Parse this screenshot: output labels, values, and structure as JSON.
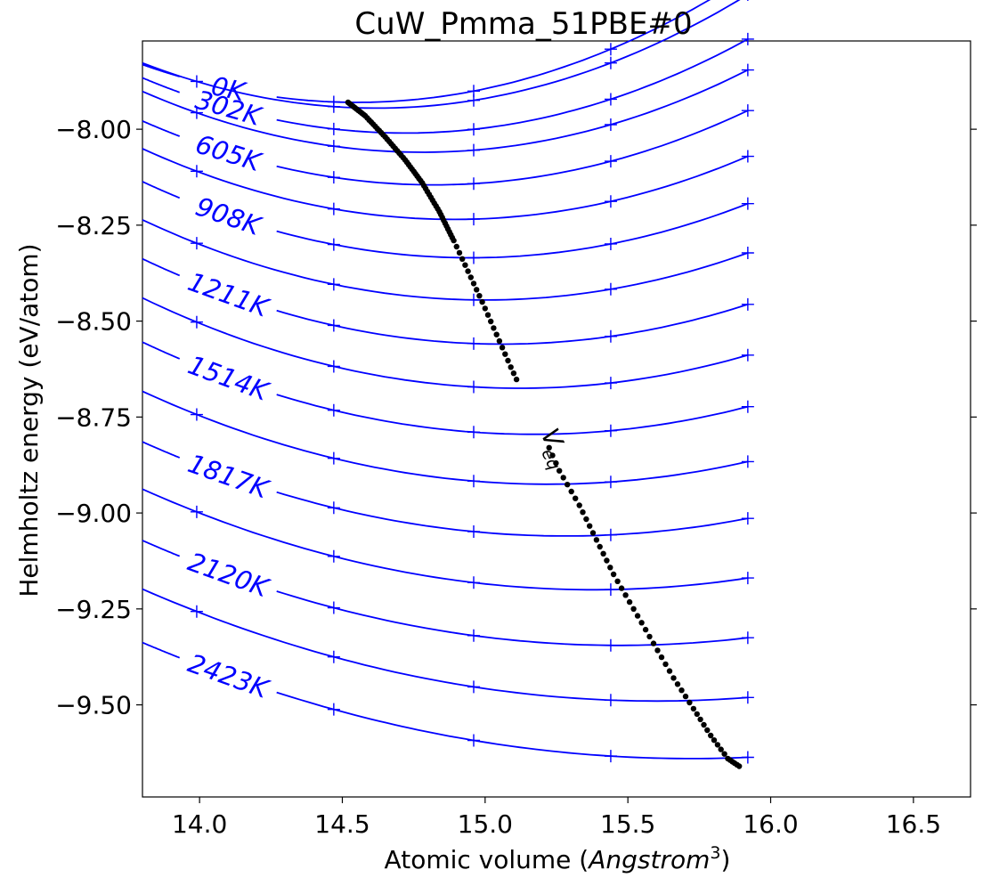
{
  "chart_data": {
    "type": "line",
    "title": "CuW_Pmma_51PBE#0",
    "xlabel_prefix": "Atomic volume (",
    "xlabel_italic": "Angstrom",
    "xlabel_sup": "3",
    "xlabel_suffix": ")",
    "ylabel": "Helmholtz energy (eV/atom)",
    "xlim": [
      13.8,
      16.7
    ],
    "ylim": [
      -9.74,
      -7.77
    ],
    "xticks": [
      14.0,
      14.5,
      15.0,
      15.5,
      16.0,
      16.5
    ],
    "xtick_labels": [
      "14.0",
      "14.5",
      "15.0",
      "15.5",
      "16.0",
      "16.5"
    ],
    "yticks": [
      -8.0,
      -8.25,
      -8.5,
      -8.75,
      -9.0,
      -9.25,
      -9.5
    ],
    "ytick_labels": [
      "−8.00",
      "−8.25",
      "−8.50",
      "−8.75",
      "−9.00",
      "−9.25",
      "−9.50"
    ],
    "grid": false,
    "marker_volumes": [
      13.99,
      14.47,
      14.96,
      15.44,
      15.92
    ],
    "curve_color": "#0000ff",
    "veq_color": "#000000",
    "series": [
      {
        "label": "0K",
        "v0": 14.55,
        "e0": -7.93,
        "b": 0.175
      },
      {
        "label": "",
        "v0": 14.62,
        "e0": -7.945,
        "b": 0.175
      },
      {
        "label": "302K",
        "v0": 14.72,
        "e0": -8.01,
        "b": 0.17
      },
      {
        "label": "",
        "v0": 14.78,
        "e0": -8.06,
        "b": 0.165
      },
      {
        "label": "605K",
        "v0": 14.82,
        "e0": -8.145,
        "b": 0.16
      },
      {
        "label": "",
        "v0": 14.89,
        "e0": -8.235,
        "b": 0.155
      },
      {
        "label": "908K",
        "v0": 14.95,
        "e0": -8.335,
        "b": 0.15
      },
      {
        "label": "",
        "v0": 15.0,
        "e0": -8.445,
        "b": 0.145
      },
      {
        "label": "1211K",
        "v0": 15.06,
        "e0": -8.56,
        "b": 0.14
      },
      {
        "label": "",
        "v0": 15.12,
        "e0": -8.675,
        "b": 0.135
      },
      {
        "label": "1514K",
        "v0": 15.17,
        "e0": -8.795,
        "b": 0.128
      },
      {
        "label": "",
        "v0": 15.22,
        "e0": -8.925,
        "b": 0.12
      },
      {
        "label": "1817K",
        "v0": 15.28,
        "e0": -9.06,
        "b": 0.112
      },
      {
        "label": "",
        "v0": 15.38,
        "e0": -9.2,
        "b": 0.105
      },
      {
        "label": "2120K",
        "v0": 15.47,
        "e0": -9.345,
        "b": 0.098
      },
      {
        "label": "",
        "v0": 15.6,
        "e0": -9.49,
        "b": 0.09
      },
      {
        "label": "2423K",
        "v0": 15.72,
        "e0": -9.64,
        "b": 0.082
      }
    ],
    "veq_label_main": "V",
    "veq_label_sub": "eq",
    "veq_points": [
      [
        14.52,
        -7.93
      ],
      [
        14.58,
        -7.965
      ],
      [
        14.65,
        -8.02
      ],
      [
        14.72,
        -8.08
      ],
      [
        14.78,
        -8.14
      ],
      [
        14.84,
        -8.215
      ],
      [
        14.89,
        -8.29
      ],
      [
        14.94,
        -8.37
      ],
      [
        14.99,
        -8.45
      ],
      [
        15.04,
        -8.535
      ],
      [
        15.09,
        -8.62
      ],
      [
        15.14,
        -8.7
      ],
      [
        15.2,
        -8.79
      ],
      [
        15.26,
        -8.89
      ],
      [
        15.33,
        -8.98
      ],
      [
        15.39,
        -9.07
      ],
      [
        15.45,
        -9.16
      ],
      [
        15.52,
        -9.25
      ],
      [
        15.59,
        -9.34
      ],
      [
        15.66,
        -9.43
      ],
      [
        15.73,
        -9.51
      ],
      [
        15.79,
        -9.58
      ],
      [
        15.85,
        -9.64
      ],
      [
        15.89,
        -9.66
      ]
    ]
  }
}
